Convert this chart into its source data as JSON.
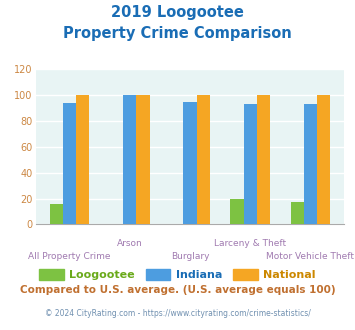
{
  "title_line1": "2019 Loogootee",
  "title_line2": "Property Crime Comparison",
  "categories": [
    "All Property Crime",
    "Arson",
    "Burglary",
    "Larceny & Theft",
    "Motor Vehicle Theft"
  ],
  "loogootee": [
    16,
    0,
    0,
    20,
    17
  ],
  "indiana": [
    94,
    100,
    95,
    93,
    93
  ],
  "national": [
    100,
    100,
    100,
    100,
    100
  ],
  "color_loogootee": "#7dc242",
  "color_indiana": "#4d9de0",
  "color_national": "#f5a623",
  "color_title": "#1a6db5",
  "color_axis_label": "#a07ab0",
  "color_ytick": "#cc8844",
  "color_bg_chart": "#e8f4f4",
  "color_grid": "#ffffff",
  "ylabel_max": 120,
  "yticks": [
    0,
    20,
    40,
    60,
    80,
    100,
    120
  ],
  "footnote1": "Compared to U.S. average. (U.S. average equals 100)",
  "footnote2": "© 2024 CityRating.com - https://www.cityrating.com/crime-statistics/",
  "color_footnote1": "#c07030",
  "color_footnote2": "#7090b0",
  "legend_label_colors": [
    "#6aaa1a",
    "#1a6db5",
    "#cc8800"
  ]
}
